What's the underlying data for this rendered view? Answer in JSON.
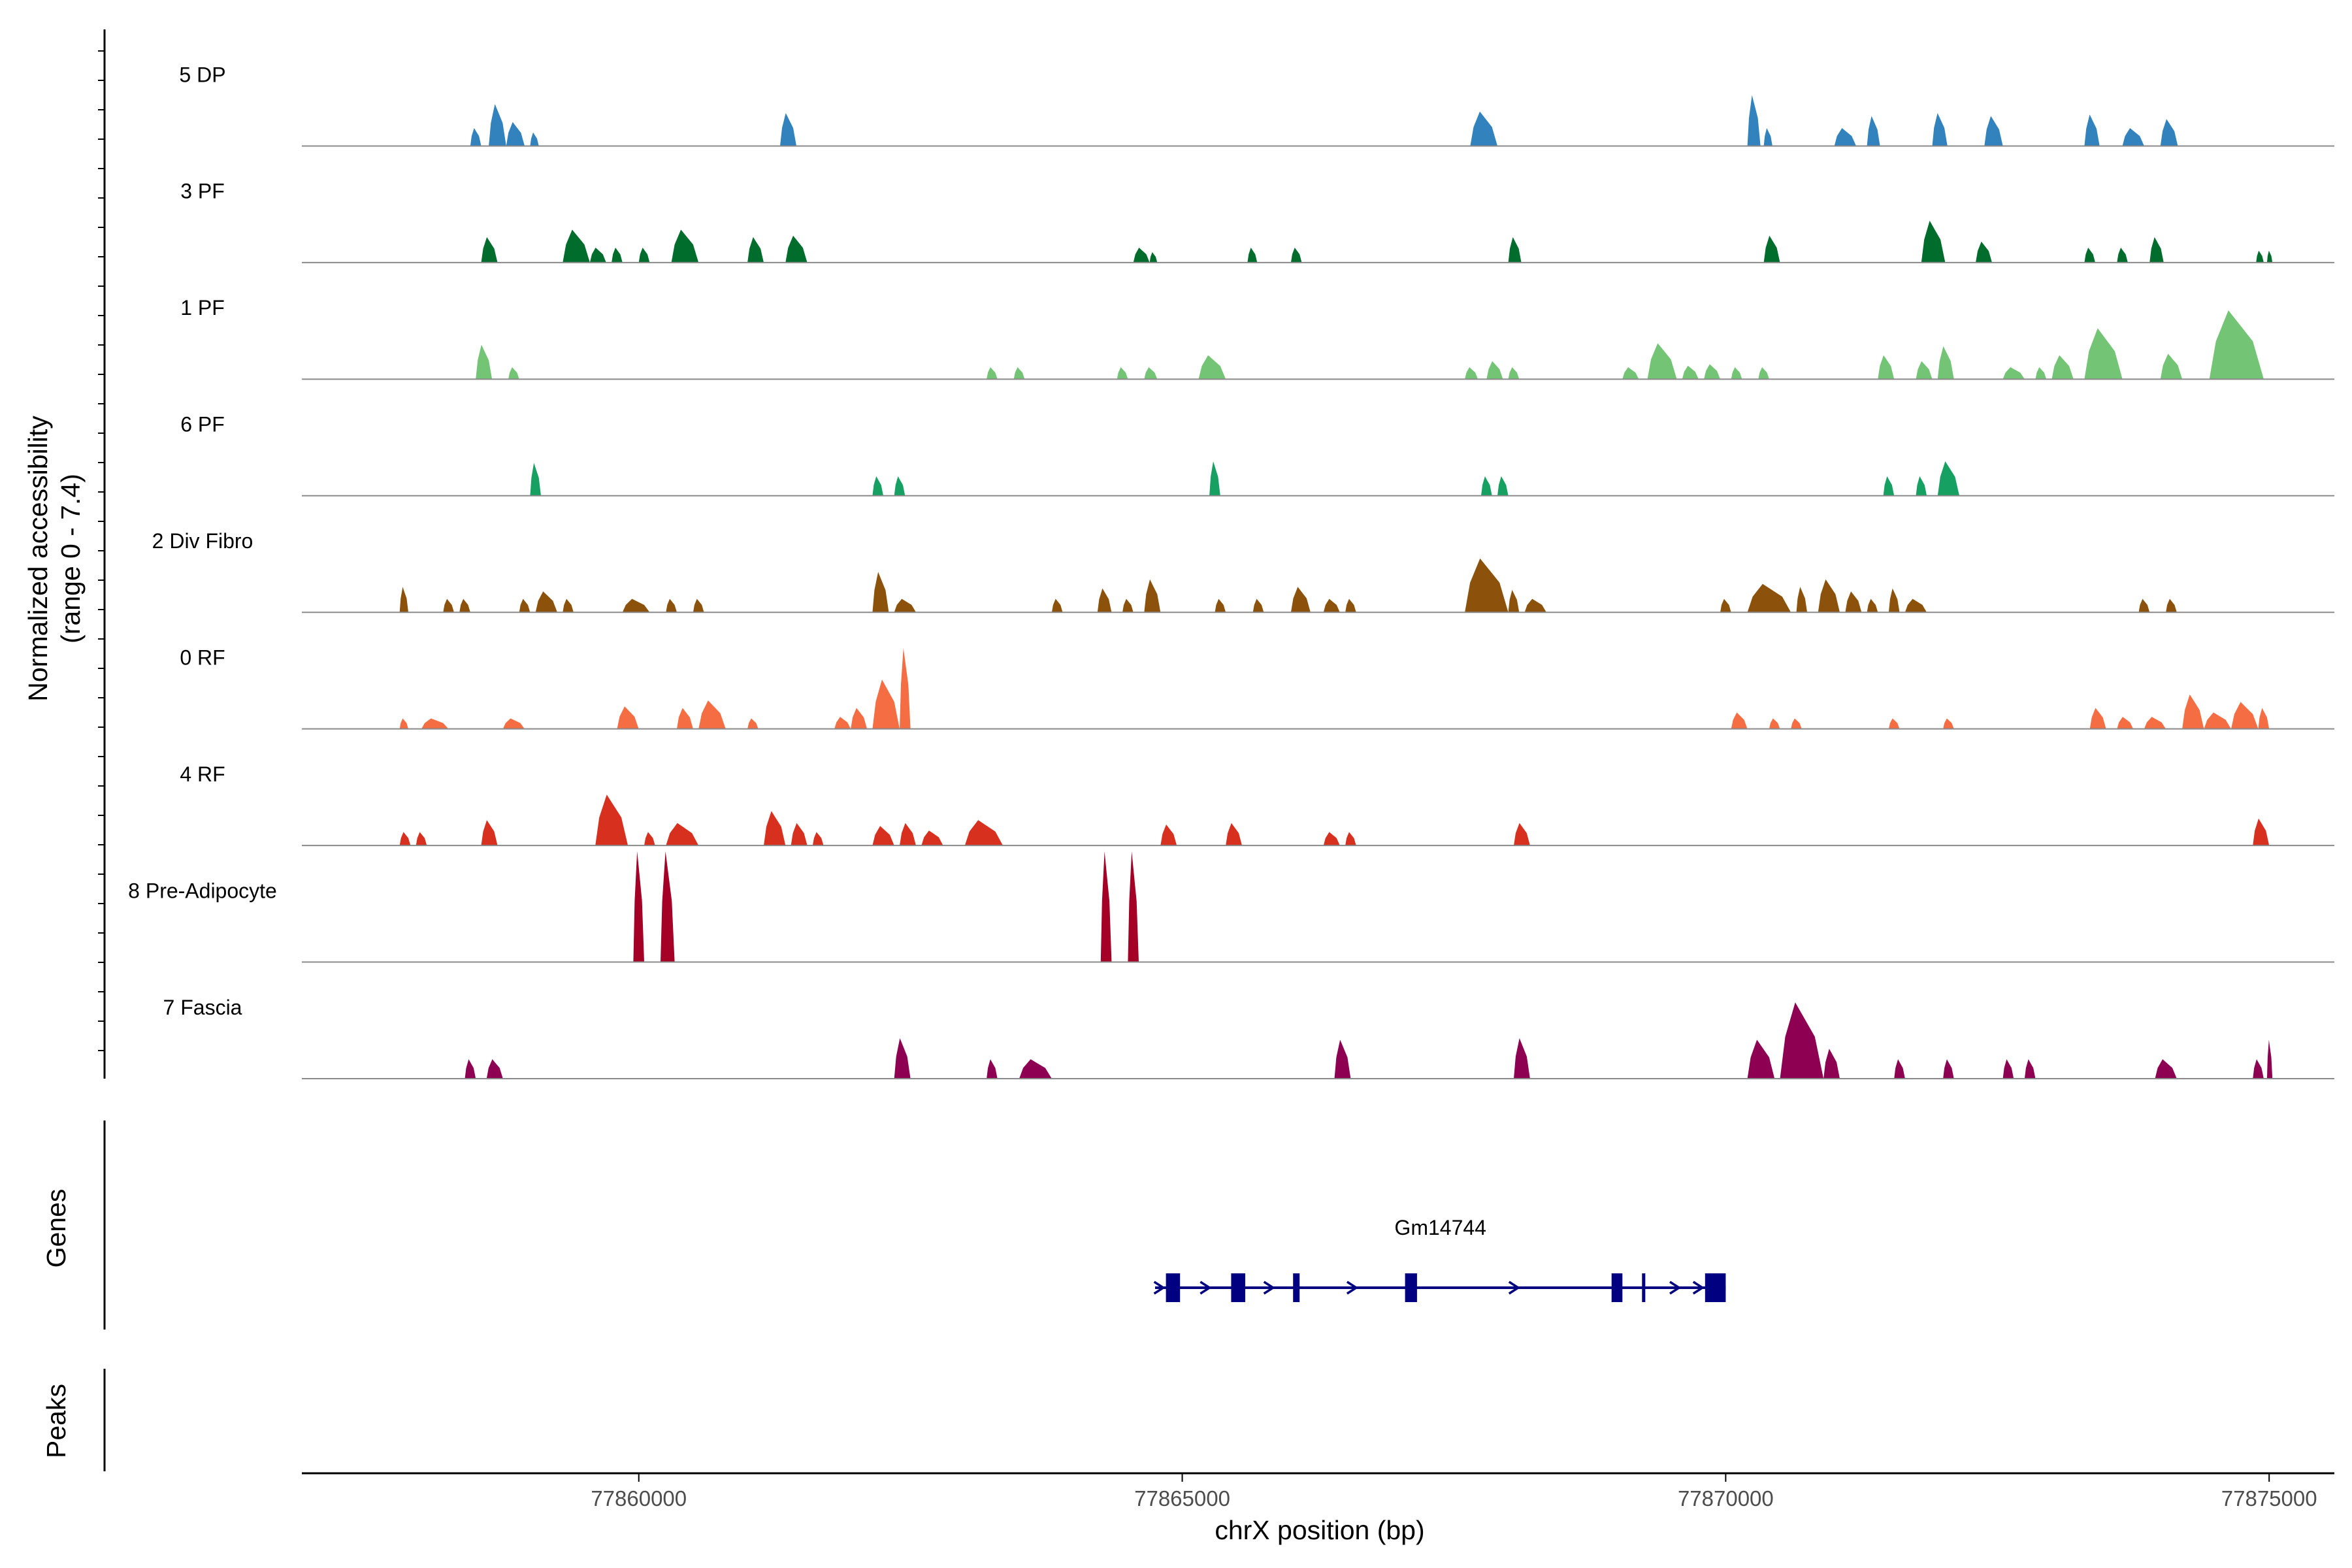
{
  "chart_data": {
    "type": "area",
    "title": "",
    "chromosome": "chrX",
    "xlabel": "chrX position (bp)",
    "ylabel_line1": "Normalized accessibility",
    "ylabel_line2": "(range 0 - 7.4)",
    "xlim": [
      77856900,
      77875600
    ],
    "ylim": [
      0,
      7.4
    ],
    "xticks": [
      77860000,
      77865000,
      77870000,
      77875000
    ],
    "xtick_labels": [
      "77860000",
      "77865000",
      "77870000",
      "77875000"
    ],
    "series": [
      {
        "name": "5 DP",
        "color": "#3182bd",
        "peaks": [
          [
            77858450,
            77858550,
            1.2
          ],
          [
            77858620,
            77858780,
            2.8
          ],
          [
            77858780,
            77858950,
            1.6
          ],
          [
            77859000,
            77859080,
            0.9
          ],
          [
            77861300,
            77861450,
            2.2
          ],
          [
            77867650,
            77867900,
            2.3
          ],
          [
            77870200,
            77870320,
            3.4
          ],
          [
            77870350,
            77870430,
            1.2
          ],
          [
            77871000,
            77871200,
            1.2
          ],
          [
            77871300,
            77871420,
            2.0
          ],
          [
            77871900,
            77872040,
            2.2
          ],
          [
            77872380,
            77872550,
            2.0
          ],
          [
            77873300,
            77873440,
            2.1
          ],
          [
            77873650,
            77873850,
            1.2
          ],
          [
            77874000,
            77874160,
            1.8
          ]
        ]
      },
      {
        "name": "3 PF",
        "color": "#006d2c",
        "peaks": [
          [
            77858550,
            77858700,
            1.7
          ],
          [
            77859300,
            77859550,
            2.2
          ],
          [
            77859550,
            77859700,
            1.0
          ],
          [
            77859750,
            77859850,
            1.0
          ],
          [
            77860000,
            77860100,
            1.0
          ],
          [
            77860300,
            77860550,
            2.2
          ],
          [
            77861000,
            77861150,
            1.7
          ],
          [
            77861350,
            77861550,
            1.8
          ],
          [
            77864550,
            77864700,
            1.0
          ],
          [
            77864700,
            77864770,
            0.7
          ],
          [
            77865600,
            77865690,
            1.0
          ],
          [
            77866000,
            77866100,
            1.0
          ],
          [
            77868000,
            77868120,
            1.7
          ],
          [
            77870350,
            77870500,
            1.8
          ],
          [
            77871800,
            77872020,
            2.8
          ],
          [
            77872300,
            77872450,
            1.4
          ],
          [
            77873300,
            77873400,
            1.0
          ],
          [
            77873600,
            77873700,
            1.0
          ],
          [
            77873900,
            77874030,
            1.7
          ],
          [
            77874880,
            77874950,
            0.8
          ],
          [
            77874980,
            77875030,
            0.8
          ]
        ]
      },
      {
        "name": "1 PF",
        "color": "#74c476",
        "peaks": [
          [
            77858500,
            77858650,
            2.3
          ],
          [
            77858800,
            77858900,
            0.8
          ],
          [
            77863200,
            77863300,
            0.8
          ],
          [
            77863450,
            77863550,
            0.8
          ],
          [
            77864400,
            77864500,
            0.8
          ],
          [
            77864650,
            77864770,
            0.8
          ],
          [
            77865150,
            77865400,
            1.6
          ],
          [
            77867600,
            77867720,
            0.8
          ],
          [
            77867800,
            77867950,
            1.2
          ],
          [
            77868000,
            77868100,
            0.8
          ],
          [
            77869050,
            77869200,
            0.8
          ],
          [
            77869280,
            77869550,
            2.4
          ],
          [
            77869600,
            77869750,
            0.9
          ],
          [
            77869800,
            77869950,
            1.0
          ],
          [
            77870050,
            77870150,
            0.8
          ],
          [
            77870300,
            77870400,
            0.8
          ],
          [
            77871400,
            77871550,
            1.6
          ],
          [
            77871750,
            77871900,
            1.2
          ],
          [
            77871950,
            77872100,
            2.2
          ],
          [
            77872550,
            77872750,
            0.8
          ],
          [
            77872850,
            77872950,
            0.8
          ],
          [
            77873000,
            77873200,
            1.6
          ],
          [
            77873300,
            77873650,
            3.4
          ],
          [
            77874000,
            77874200,
            1.7
          ],
          [
            77874450,
            77874950,
            4.6
          ]
        ]
      },
      {
        "name": "6 PF",
        "color": "#16a061",
        "peaks": [
          [
            77859000,
            77859100,
            2.2
          ],
          [
            77862150,
            77862250,
            1.3
          ],
          [
            77862350,
            77862450,
            1.3
          ],
          [
            77865250,
            77865350,
            2.3
          ],
          [
            77867750,
            77867850,
            1.3
          ],
          [
            77867900,
            77868000,
            1.3
          ],
          [
            77871450,
            77871550,
            1.3
          ],
          [
            77871750,
            77871850,
            1.3
          ],
          [
            77871950,
            77872150,
            2.3
          ]
        ]
      },
      {
        "name": "2 Div Fibro",
        "color": "#8c510a",
        "peaks": [
          [
            77857800,
            77857880,
            1.7
          ],
          [
            77858200,
            77858300,
            0.9
          ],
          [
            77858350,
            77858450,
            0.9
          ],
          [
            77858900,
            77859000,
            0.9
          ],
          [
            77859050,
            77859250,
            1.4
          ],
          [
            77859300,
            77859400,
            0.9
          ],
          [
            77859850,
            77860100,
            0.9
          ],
          [
            77860250,
            77860350,
            0.9
          ],
          [
            77860500,
            77860600,
            0.9
          ],
          [
            77862150,
            77862300,
            2.7
          ],
          [
            77862350,
            77862550,
            0.9
          ],
          [
            77863800,
            77863900,
            0.9
          ],
          [
            77864220,
            77864350,
            1.6
          ],
          [
            77864450,
            77864550,
            0.9
          ],
          [
            77864650,
            77864800,
            2.2
          ],
          [
            77865300,
            77865400,
            0.9
          ],
          [
            77865650,
            77865750,
            0.9
          ],
          [
            77866000,
            77866180,
            1.7
          ],
          [
            77866300,
            77866450,
            0.9
          ],
          [
            77866500,
            77866600,
            0.9
          ],
          [
            77867600,
            77868000,
            3.6
          ],
          [
            77868000,
            77868100,
            1.5
          ],
          [
            77868150,
            77868350,
            0.9
          ],
          [
            77869950,
            77870050,
            0.9
          ],
          [
            77870200,
            77870600,
            1.9
          ],
          [
            77870650,
            77870750,
            1.7
          ],
          [
            77870850,
            77871050,
            2.2
          ],
          [
            77871100,
            77871250,
            1.4
          ],
          [
            77871300,
            77871400,
            0.9
          ],
          [
            77871500,
            77871600,
            1.6
          ],
          [
            77871650,
            77871850,
            0.9
          ],
          [
            77873800,
            77873900,
            0.9
          ],
          [
            77874050,
            77874150,
            0.9
          ]
        ]
      },
      {
        "name": "0 RF",
        "color": "#f46d43",
        "peaks": [
          [
            77857800,
            77857880,
            0.7
          ],
          [
            77858000,
            77858250,
            0.7
          ],
          [
            77858750,
            77858950,
            0.7
          ],
          [
            77859800,
            77860000,
            1.5
          ],
          [
            77860350,
            77860500,
            1.4
          ],
          [
            77860550,
            77860800,
            1.9
          ],
          [
            77861000,
            77861100,
            0.7
          ],
          [
            77861800,
            77861950,
            0.8
          ],
          [
            77861950,
            77862100,
            1.4
          ],
          [
            77862150,
            77862400,
            3.3
          ],
          [
            77862400,
            77862500,
            5.4
          ],
          [
            77870050,
            77870200,
            1.1
          ],
          [
            77870400,
            77870500,
            0.7
          ],
          [
            77870600,
            77870700,
            0.7
          ],
          [
            77871500,
            77871600,
            0.7
          ],
          [
            77872000,
            77872100,
            0.7
          ],
          [
            77873350,
            77873500,
            1.4
          ],
          [
            77873600,
            77873750,
            0.8
          ],
          [
            77873850,
            77874050,
            0.8
          ],
          [
            77874200,
            77874400,
            2.3
          ],
          [
            77874400,
            77874650,
            1.1
          ],
          [
            77874650,
            77874900,
            1.8
          ],
          [
            77874900,
            77875000,
            1.4
          ]
        ]
      },
      {
        "name": "4 RF",
        "color": "#d7301f",
        "peaks": [
          [
            77857800,
            77857900,
            0.9
          ],
          [
            77857950,
            77858050,
            0.9
          ],
          [
            77858550,
            77858700,
            1.7
          ],
          [
            77859600,
            77859900,
            3.4
          ],
          [
            77860050,
            77860150,
            0.9
          ],
          [
            77860250,
            77860550,
            1.5
          ],
          [
            77861150,
            77861350,
            2.3
          ],
          [
            77861400,
            77861550,
            1.5
          ],
          [
            77861600,
            77861700,
            0.9
          ],
          [
            77862150,
            77862350,
            1.3
          ],
          [
            77862400,
            77862550,
            1.5
          ],
          [
            77862600,
            77862800,
            1.0
          ],
          [
            77863000,
            77863350,
            1.7
          ],
          [
            77864800,
            77864950,
            1.4
          ],
          [
            77865400,
            77865550,
            1.5
          ],
          [
            77866300,
            77866450,
            0.9
          ],
          [
            77866500,
            77866600,
            0.9
          ],
          [
            77868050,
            77868200,
            1.5
          ],
          [
            77874850,
            77875000,
            1.8
          ]
        ]
      },
      {
        "name": "8 Pre-Adipocyte",
        "color": "#a50026",
        "peaks": [
          [
            77859950,
            77860050,
            7.4
          ],
          [
            77860200,
            77860330,
            7.4
          ],
          [
            77864250,
            77864350,
            7.4
          ],
          [
            77864500,
            77864600,
            7.4
          ]
        ]
      },
      {
        "name": "7 Fascia",
        "color": "#8e0152",
        "peaks": [
          [
            77858400,
            77858500,
            1.3
          ],
          [
            77858600,
            77858750,
            1.3
          ],
          [
            77862350,
            77862500,
            2.7
          ],
          [
            77863200,
            77863300,
            1.3
          ],
          [
            77863500,
            77863800,
            1.3
          ],
          [
            77866400,
            77866550,
            2.6
          ],
          [
            77868050,
            77868200,
            2.7
          ],
          [
            77870200,
            77870450,
            2.6
          ],
          [
            77870500,
            77870900,
            5.1
          ],
          [
            77870900,
            77871050,
            2.0
          ],
          [
            77871550,
            77871650,
            1.3
          ],
          [
            77872000,
            77872100,
            1.3
          ],
          [
            77872550,
            77872650,
            1.3
          ],
          [
            77872750,
            77872850,
            1.3
          ],
          [
            77873950,
            77874150,
            1.3
          ],
          [
            77874850,
            77874950,
            1.3
          ],
          [
            77874980,
            77875030,
            2.6
          ]
        ]
      }
    ],
    "genes_track": {
      "label": "Genes",
      "color": "#000080",
      "genes": [
        {
          "name": "Gm14744",
          "start": 77864750,
          "end": 77870000,
          "strand": "+",
          "exons": [
            [
              77864850,
              77864980
            ],
            [
              77865450,
              77865580
            ],
            [
              77866020,
              77866080
            ],
            [
              77867050,
              77867160
            ],
            [
              77868950,
              77869050
            ],
            [
              77869230,
              77869260
            ],
            [
              77869810,
              77870000
            ]
          ]
        }
      ]
    },
    "peaks_track": {
      "label": "Peaks",
      "peaks": []
    }
  }
}
